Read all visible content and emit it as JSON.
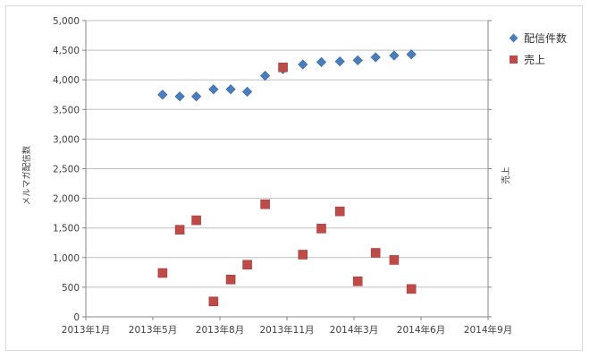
{
  "chart_data": {
    "type": "scatter",
    "title": "",
    "ylabel": "メルマガ配信数",
    "y2label": "売上",
    "ylim": [
      0,
      5000
    ],
    "ytick_labels": [
      "0",
      "500",
      "1,000",
      "1,500",
      "2,000",
      "2,500",
      "3,000",
      "3,500",
      "4,000",
      "4,500",
      "5,000"
    ],
    "xlim": [
      "2013-01-01",
      "2014-09-01"
    ],
    "xtick_labels": [
      "2013年1月",
      "2013年5月",
      "2013年8月",
      "2013年11月",
      "2014年3月",
      "2014年6月",
      "2014年9月"
    ],
    "grid": true,
    "legend_position": "top-right",
    "series": [
      {
        "name": "配信件数",
        "marker": "diamond",
        "color": "#4a7ebb",
        "axis": "primary",
        "points": [
          {
            "x": "2013-04-27",
            "y": 3750
          },
          {
            "x": "2013-05-23",
            "y": 3720
          },
          {
            "x": "2013-06-17",
            "y": 3720
          },
          {
            "x": "2013-07-13",
            "y": 3840
          },
          {
            "x": "2013-08-08",
            "y": 3840
          },
          {
            "x": "2013-09-02",
            "y": 3800
          },
          {
            "x": "2013-09-29",
            "y": 4070
          },
          {
            "x": "2013-10-26",
            "y": 4180
          },
          {
            "x": "2013-11-25",
            "y": 4260
          },
          {
            "x": "2013-12-23",
            "y": 4300
          },
          {
            "x": "2014-01-20",
            "y": 4310
          },
          {
            "x": "2014-02-16",
            "y": 4330
          },
          {
            "x": "2014-03-15",
            "y": 4380
          },
          {
            "x": "2014-04-12",
            "y": 4410
          },
          {
            "x": "2014-05-08",
            "y": 4430
          }
        ]
      },
      {
        "name": "売上",
        "marker": "square",
        "color": "#be4b48",
        "axis": "secondary",
        "points": [
          {
            "x": "2013-04-27",
            "y": 740
          },
          {
            "x": "2013-05-23",
            "y": 1470
          },
          {
            "x": "2013-06-17",
            "y": 1630
          },
          {
            "x": "2013-07-13",
            "y": 260
          },
          {
            "x": "2013-08-08",
            "y": 630
          },
          {
            "x": "2013-09-02",
            "y": 880
          },
          {
            "x": "2013-09-29",
            "y": 1900
          },
          {
            "x": "2013-10-26",
            "y": 4210
          },
          {
            "x": "2013-11-25",
            "y": 1050
          },
          {
            "x": "2013-12-23",
            "y": 1490
          },
          {
            "x": "2014-01-20",
            "y": 1780
          },
          {
            "x": "2014-02-16",
            "y": 600
          },
          {
            "x": "2014-03-15",
            "y": 1080
          },
          {
            "x": "2014-04-12",
            "y": 960
          },
          {
            "x": "2014-05-08",
            "y": 470
          }
        ]
      }
    ],
    "colors": {
      "gridline": "#bfbfbf",
      "axis": "#868686"
    }
  }
}
